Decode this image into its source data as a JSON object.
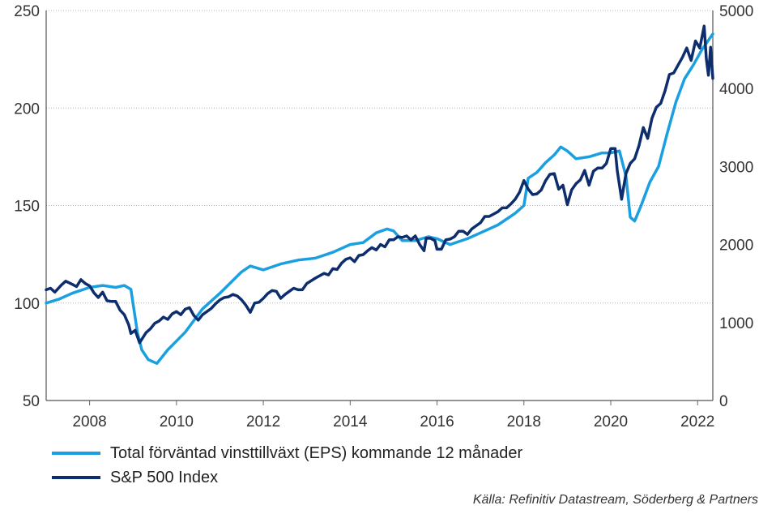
{
  "chart_data": {
    "type": "line",
    "x_range": [
      2007.0,
      2022.35
    ],
    "x_ticks": [
      "2008",
      "2010",
      "2012",
      "2014",
      "2016",
      "2018",
      "2020",
      "2022"
    ],
    "y_left": {
      "range": [
        50,
        250
      ],
      "ticks": [
        "50",
        "100",
        "150",
        "200",
        "250"
      ]
    },
    "y_right": {
      "range": [
        0,
        5000
      ],
      "ticks": [
        "0",
        "1000",
        "2000",
        "3000",
        "4000",
        "5000"
      ]
    },
    "grid": "horizontal",
    "legend_position": "bottom-left",
    "series": [
      {
        "name": "Total förväntad vinsttillväxt (EPS) kommande 12 månader",
        "axis": "left",
        "color": "#1aa0e0",
        "points": [
          [
            2007.0,
            100
          ],
          [
            2007.3,
            102
          ],
          [
            2007.6,
            105
          ],
          [
            2008.0,
            108
          ],
          [
            2008.3,
            109
          ],
          [
            2008.6,
            108
          ],
          [
            2008.8,
            109
          ],
          [
            2008.95,
            107
          ],
          [
            2009.1,
            85
          ],
          [
            2009.2,
            76
          ],
          [
            2009.35,
            71
          ],
          [
            2009.55,
            69
          ],
          [
            2009.8,
            76
          ],
          [
            2010.2,
            85
          ],
          [
            2010.6,
            97
          ],
          [
            2011.0,
            105
          ],
          [
            2011.5,
            116
          ],
          [
            2011.7,
            119
          ],
          [
            2012.0,
            117
          ],
          [
            2012.4,
            120
          ],
          [
            2012.8,
            122
          ],
          [
            2013.2,
            123
          ],
          [
            2013.6,
            126
          ],
          [
            2014.0,
            130
          ],
          [
            2014.3,
            131
          ],
          [
            2014.6,
            136
          ],
          [
            2014.85,
            138
          ],
          [
            2015.0,
            137
          ],
          [
            2015.2,
            132
          ],
          [
            2015.5,
            132
          ],
          [
            2015.8,
            134
          ],
          [
            2016.0,
            133
          ],
          [
            2016.3,
            130
          ],
          [
            2016.7,
            133
          ],
          [
            2017.0,
            136
          ],
          [
            2017.4,
            140
          ],
          [
            2017.8,
            146
          ],
          [
            2018.0,
            150
          ],
          [
            2018.1,
            164
          ],
          [
            2018.3,
            167
          ],
          [
            2018.5,
            172
          ],
          [
            2018.7,
            176
          ],
          [
            2018.85,
            180
          ],
          [
            2019.0,
            178
          ],
          [
            2019.2,
            174
          ],
          [
            2019.5,
            175
          ],
          [
            2019.8,
            177
          ],
          [
            2020.0,
            177
          ],
          [
            2020.2,
            178
          ],
          [
            2020.35,
            165
          ],
          [
            2020.45,
            144
          ],
          [
            2020.55,
            142
          ],
          [
            2020.7,
            150
          ],
          [
            2020.9,
            162
          ],
          [
            2021.1,
            170
          ],
          [
            2021.3,
            187
          ],
          [
            2021.5,
            203
          ],
          [
            2021.7,
            215
          ],
          [
            2021.9,
            222
          ],
          [
            2022.1,
            230
          ],
          [
            2022.35,
            238
          ]
        ]
      },
      {
        "name": "S&P 500 Index",
        "axis": "right",
        "color": "#0d2d6c",
        "points": [
          [
            2007.0,
            1420
          ],
          [
            2007.1,
            1440
          ],
          [
            2007.2,
            1390
          ],
          [
            2007.35,
            1480
          ],
          [
            2007.45,
            1530
          ],
          [
            2007.6,
            1490
          ],
          [
            2007.7,
            1460
          ],
          [
            2007.8,
            1550
          ],
          [
            2007.9,
            1500
          ],
          [
            2008.0,
            1470
          ],
          [
            2008.1,
            1380
          ],
          [
            2008.2,
            1320
          ],
          [
            2008.3,
            1390
          ],
          [
            2008.4,
            1280
          ],
          [
            2008.5,
            1270
          ],
          [
            2008.6,
            1270
          ],
          [
            2008.7,
            1160
          ],
          [
            2008.8,
            1100
          ],
          [
            2008.9,
            970
          ],
          [
            2008.95,
            860
          ],
          [
            2009.05,
            900
          ],
          [
            2009.15,
            740
          ],
          [
            2009.3,
            870
          ],
          [
            2009.4,
            920
          ],
          [
            2009.5,
            990
          ],
          [
            2009.6,
            1020
          ],
          [
            2009.7,
            1070
          ],
          [
            2009.8,
            1040
          ],
          [
            2009.9,
            1110
          ],
          [
            2010.0,
            1140
          ],
          [
            2010.1,
            1100
          ],
          [
            2010.2,
            1170
          ],
          [
            2010.3,
            1190
          ],
          [
            2010.4,
            1090
          ],
          [
            2010.5,
            1030
          ],
          [
            2010.6,
            1100
          ],
          [
            2010.7,
            1140
          ],
          [
            2010.8,
            1180
          ],
          [
            2010.9,
            1240
          ],
          [
            2011.0,
            1290
          ],
          [
            2011.1,
            1320
          ],
          [
            2011.2,
            1330
          ],
          [
            2011.3,
            1360
          ],
          [
            2011.4,
            1340
          ],
          [
            2011.5,
            1290
          ],
          [
            2011.6,
            1220
          ],
          [
            2011.7,
            1130
          ],
          [
            2011.8,
            1250
          ],
          [
            2011.9,
            1260
          ],
          [
            2012.0,
            1310
          ],
          [
            2012.1,
            1370
          ],
          [
            2012.2,
            1410
          ],
          [
            2012.3,
            1400
          ],
          [
            2012.4,
            1310
          ],
          [
            2012.5,
            1360
          ],
          [
            2012.6,
            1400
          ],
          [
            2012.7,
            1440
          ],
          [
            2012.8,
            1420
          ],
          [
            2012.9,
            1420
          ],
          [
            2013.0,
            1500
          ],
          [
            2013.2,
            1570
          ],
          [
            2013.4,
            1630
          ],
          [
            2013.5,
            1610
          ],
          [
            2013.6,
            1690
          ],
          [
            2013.7,
            1680
          ],
          [
            2013.8,
            1760
          ],
          [
            2013.9,
            1810
          ],
          [
            2014.0,
            1830
          ],
          [
            2014.1,
            1780
          ],
          [
            2014.2,
            1860
          ],
          [
            2014.3,
            1870
          ],
          [
            2014.4,
            1920
          ],
          [
            2014.5,
            1960
          ],
          [
            2014.6,
            1930
          ],
          [
            2014.7,
            2000
          ],
          [
            2014.8,
            1970
          ],
          [
            2014.9,
            2060
          ],
          [
            2015.0,
            2060
          ],
          [
            2015.1,
            2100
          ],
          [
            2015.2,
            2090
          ],
          [
            2015.3,
            2110
          ],
          [
            2015.4,
            2060
          ],
          [
            2015.5,
            2110
          ],
          [
            2015.6,
            2000
          ],
          [
            2015.7,
            1920
          ],
          [
            2015.75,
            2080
          ],
          [
            2015.85,
            2080
          ],
          [
            2015.95,
            2050
          ],
          [
            2016.0,
            1940
          ],
          [
            2016.1,
            1940
          ],
          [
            2016.2,
            2060
          ],
          [
            2016.3,
            2070
          ],
          [
            2016.4,
            2100
          ],
          [
            2016.5,
            2170
          ],
          [
            2016.6,
            2170
          ],
          [
            2016.7,
            2130
          ],
          [
            2016.8,
            2200
          ],
          [
            2016.9,
            2240
          ],
          [
            2017.0,
            2280
          ],
          [
            2017.1,
            2360
          ],
          [
            2017.2,
            2360
          ],
          [
            2017.3,
            2390
          ],
          [
            2017.4,
            2420
          ],
          [
            2017.5,
            2470
          ],
          [
            2017.6,
            2470
          ],
          [
            2017.7,
            2520
          ],
          [
            2017.8,
            2580
          ],
          [
            2017.9,
            2670
          ],
          [
            2018.0,
            2820
          ],
          [
            2018.1,
            2710
          ],
          [
            2018.2,
            2640
          ],
          [
            2018.3,
            2650
          ],
          [
            2018.4,
            2700
          ],
          [
            2018.5,
            2820
          ],
          [
            2018.6,
            2900
          ],
          [
            2018.7,
            2910
          ],
          [
            2018.8,
            2710
          ],
          [
            2018.9,
            2760
          ],
          [
            2019.0,
            2510
          ],
          [
            2019.1,
            2700
          ],
          [
            2019.2,
            2780
          ],
          [
            2019.3,
            2830
          ],
          [
            2019.4,
            2950
          ],
          [
            2019.5,
            2760
          ],
          [
            2019.6,
            2940
          ],
          [
            2019.7,
            2980
          ],
          [
            2019.8,
            2980
          ],
          [
            2019.9,
            3040
          ],
          [
            2020.0,
            3230
          ],
          [
            2020.1,
            3230
          ],
          [
            2020.15,
            2950
          ],
          [
            2020.25,
            2580
          ],
          [
            2020.35,
            2910
          ],
          [
            2020.45,
            3040
          ],
          [
            2020.55,
            3100
          ],
          [
            2020.65,
            3270
          ],
          [
            2020.75,
            3500
          ],
          [
            2020.85,
            3360
          ],
          [
            2020.95,
            3620
          ],
          [
            2021.05,
            3760
          ],
          [
            2021.15,
            3810
          ],
          [
            2021.25,
            3970
          ],
          [
            2021.35,
            4180
          ],
          [
            2021.45,
            4200
          ],
          [
            2021.55,
            4300
          ],
          [
            2021.65,
            4400
          ],
          [
            2021.75,
            4520
          ],
          [
            2021.85,
            4360
          ],
          [
            2021.95,
            4610
          ],
          [
            2022.05,
            4520
          ],
          [
            2022.15,
            4800
          ],
          [
            2022.2,
            4380
          ],
          [
            2022.25,
            4170
          ],
          [
            2022.3,
            4530
          ],
          [
            2022.35,
            4130
          ]
        ]
      }
    ]
  },
  "legend": {
    "items": [
      {
        "label": "Total förväntad vinsttillväxt (EPS) kommande 12 månader",
        "color": "#1aa0e0"
      },
      {
        "label": "S&P 500 Index",
        "color": "#0d2d6c"
      }
    ]
  },
  "source": "Källa: Refinitiv Datastream, Söderberg & Partners"
}
